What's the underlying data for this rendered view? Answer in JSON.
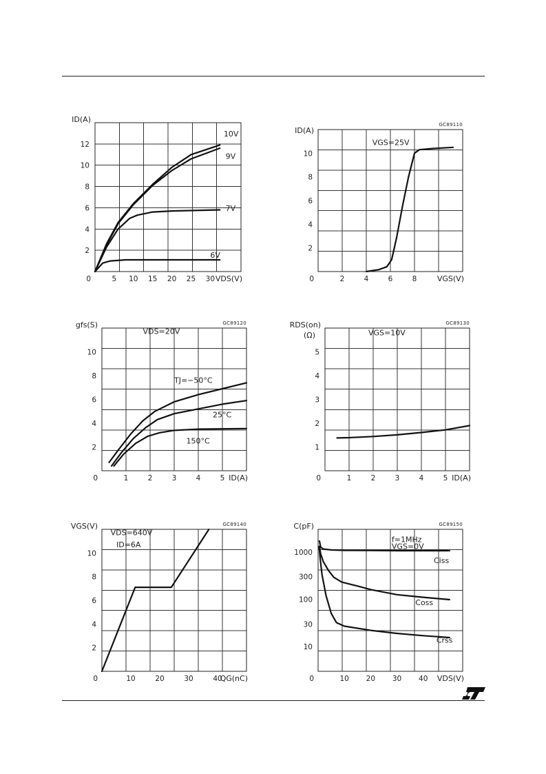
{
  "logo": {
    "icon": "st-logo-icon"
  },
  "chart_data": [
    {
      "id": "output",
      "type": "line",
      "code": "",
      "ylabel": "ID(A)",
      "xlabel": "VDS(V)",
      "xlim": [
        0,
        38
      ],
      "ylim": [
        0,
        14
      ],
      "grid": true,
      "x_ticks": [
        0,
        5,
        10,
        15,
        20,
        25,
        30
      ],
      "x_tick_labels": [
        "0",
        "5",
        "10",
        "15",
        "20",
        "25",
        "30"
      ],
      "y_ticks": [
        2,
        4,
        6,
        8,
        10,
        12
      ],
      "y_tick_labels": [
        "2",
        "4",
        "6",
        "8",
        "10",
        "12"
      ],
      "annotations": [],
      "series": [
        {
          "name": "10V",
          "label_at": [
            33.5,
            12.7
          ],
          "points": [
            [
              0,
              0
            ],
            [
              3,
              2.6
            ],
            [
              6,
              4.6
            ],
            [
              10,
              6.4
            ],
            [
              15,
              8.2
            ],
            [
              20,
              9.8
            ],
            [
              25,
              11.0
            ],
            [
              32.5,
              11.9
            ]
          ]
        },
        {
          "name": "9V",
          "label_at": [
            34.0,
            10.6
          ],
          "points": [
            [
              0,
              0
            ],
            [
              3,
              2.5
            ],
            [
              6,
              4.5
            ],
            [
              10,
              6.3
            ],
            [
              15,
              8.1
            ],
            [
              20,
              9.5
            ],
            [
              25,
              10.6
            ],
            [
              32.5,
              11.6
            ]
          ]
        },
        {
          "name": "7V",
          "label_at": [
            34.0,
            5.7
          ],
          "points": [
            [
              0,
              0
            ],
            [
              3,
              2.3
            ],
            [
              6,
              4.0
            ],
            [
              9,
              5.0
            ],
            [
              11,
              5.3
            ],
            [
              15,
              5.6
            ],
            [
              20,
              5.7
            ],
            [
              32.5,
              5.8
            ]
          ]
        },
        {
          "name": "6V",
          "label_at": [
            30.0,
            1.3
          ],
          "points": [
            [
              0,
              0
            ],
            [
              2,
              0.8
            ],
            [
              4,
              1.0
            ],
            [
              8,
              1.1
            ],
            [
              32.5,
              1.1
            ]
          ]
        }
      ]
    },
    {
      "id": "transfer",
      "type": "line",
      "code": "GC89110",
      "ylabel": "ID(A)",
      "xlabel": "VGS(V)",
      "xlim": [
        0,
        12
      ],
      "ylim": [
        0,
        12
      ],
      "grid": true,
      "x_ticks": [
        0,
        2,
        4,
        6,
        8
      ],
      "x_tick_labels": [
        "0",
        "2",
        "4",
        "6",
        "8"
      ],
      "y_ticks": [
        2,
        4,
        6,
        8,
        10
      ],
      "y_tick_labels": [
        "2",
        "4",
        "6",
        "8",
        "10"
      ],
      "annotations": [
        {
          "text": "VGS=25V",
          "at": [
            4.5,
            10.7
          ]
        }
      ],
      "series": [
        {
          "name": "",
          "points": [
            [
              4.0,
              0
            ],
            [
              5.0,
              0.15
            ],
            [
              5.7,
              0.4
            ],
            [
              6.1,
              1.0
            ],
            [
              6.5,
              2.8
            ],
            [
              7.0,
              5.5
            ],
            [
              7.5,
              8.0
            ],
            [
              8.0,
              10.0
            ],
            [
              8.4,
              10.3
            ],
            [
              9.5,
              10.4
            ],
            [
              11.2,
              10.5
            ]
          ]
        }
      ]
    },
    {
      "id": "transconductance",
      "type": "line",
      "code": "GC89120",
      "ylabel": "gfs(S)",
      "xlabel": "ID(A)",
      "xlim": [
        0,
        6
      ],
      "ylim": [
        0,
        12
      ],
      "grid": true,
      "x_ticks": [
        0,
        1,
        2,
        3,
        4,
        5
      ],
      "x_tick_labels": [
        "0",
        "1",
        "2",
        "3",
        "4",
        "5"
      ],
      "y_ticks": [
        2,
        4,
        6,
        8,
        10
      ],
      "y_tick_labels": [
        "2",
        "4",
        "6",
        "8",
        "10"
      ],
      "annotations": [
        {
          "text": "VDS=20V",
          "at": [
            1.7,
            11.5
          ]
        }
      ],
      "series": [
        {
          "name": "TJ=−50°C",
          "label_at": [
            3.0,
            7.4
          ],
          "points": [
            [
              0.3,
              0.7
            ],
            [
              0.7,
              1.8
            ],
            [
              1.2,
              3.1
            ],
            [
              1.7,
              4.2
            ],
            [
              2.2,
              5.0
            ],
            [
              3.0,
              5.8
            ],
            [
              4.0,
              6.4
            ],
            [
              5.0,
              6.9
            ],
            [
              6.0,
              7.4
            ]
          ]
        },
        {
          "name": "25°C",
          "label_at": [
            4.6,
            4.5
          ],
          "points": [
            [
              0.4,
              0.4
            ],
            [
              0.8,
              1.5
            ],
            [
              1.3,
              2.7
            ],
            [
              1.8,
              3.6
            ],
            [
              2.3,
              4.3
            ],
            [
              3.0,
              4.8
            ],
            [
              4.0,
              5.2
            ],
            [
              5.0,
              5.6
            ],
            [
              6.0,
              5.9
            ]
          ]
        },
        {
          "name": "150°C",
          "label_at": [
            3.5,
            2.3
          ],
          "points": [
            [
              0.5,
              0.4
            ],
            [
              0.9,
              1.4
            ],
            [
              1.4,
              2.3
            ],
            [
              1.9,
              2.9
            ],
            [
              2.4,
              3.2
            ],
            [
              3.0,
              3.4
            ],
            [
              4.0,
              3.5
            ],
            [
              6.0,
              3.55
            ]
          ]
        }
      ]
    },
    {
      "id": "rdson",
      "type": "line",
      "code": "GC89130",
      "ylabel": "RDS(on)",
      "ylabel2": "(Ω)",
      "xlabel": "ID(A)",
      "xlim": [
        0,
        6
      ],
      "ylim": [
        0,
        6
      ],
      "grid": true,
      "x_ticks": [
        0,
        1,
        2,
        3,
        4,
        5
      ],
      "x_tick_labels": [
        "0",
        "1",
        "2",
        "3",
        "4",
        "5"
      ],
      "y_ticks": [
        1,
        2,
        3,
        4,
        5
      ],
      "y_tick_labels": [
        "1",
        "2",
        "3",
        "4",
        "5"
      ],
      "annotations": [
        {
          "text": "VGS=10V",
          "at": [
            1.8,
            5.7
          ]
        }
      ],
      "series": [
        {
          "name": "",
          "points": [
            [
              0.5,
              1.38
            ],
            [
              1,
              1.39
            ],
            [
              2,
              1.44
            ],
            [
              3,
              1.51
            ],
            [
              4,
              1.61
            ],
            [
              5,
              1.72
            ],
            [
              6,
              1.9
            ]
          ]
        }
      ]
    },
    {
      "id": "gate_charge",
      "type": "line",
      "code": "GC89140",
      "ylabel": "VGS(V)",
      "xlabel": "QG(nC)",
      "xlim": [
        0,
        50
      ],
      "ylim": [
        0,
        12
      ],
      "grid": true,
      "x_ticks": [
        0,
        10,
        20,
        30,
        40
      ],
      "x_tick_labels": [
        "0",
        "10",
        "20",
        "30",
        "40"
      ],
      "y_ticks": [
        2,
        4,
        6,
        8,
        10
      ],
      "y_tick_labels": [
        "2",
        "4",
        "6",
        "8",
        "10"
      ],
      "annotations": [
        {
          "text": "VDS=640V",
          "at": [
            3.0,
            11.5
          ]
        },
        {
          "text": "ID=6A",
          "at": [
            5.0,
            10.5
          ]
        }
      ],
      "series": [
        {
          "name": "",
          "points": [
            [
              0,
              0
            ],
            [
              11.5,
              7.1
            ],
            [
              24,
              7.1
            ],
            [
              37,
              12
            ]
          ]
        }
      ]
    },
    {
      "id": "capacitance",
      "type": "line",
      "code": "GC89150",
      "ylabel": "C(pF)",
      "xlabel": "VDS(V)",
      "xlim": [
        0,
        55
      ],
      "ylim_log": [
        3,
        3000
      ],
      "grid": true,
      "x_ticks": [
        0,
        10,
        20,
        30,
        40
      ],
      "x_tick_labels": [
        "0",
        "10",
        "20",
        "30",
        "40"
      ],
      "y_ticks": [
        10,
        30,
        100,
        300,
        1000
      ],
      "y_tick_labels": [
        "10",
        "30",
        "100",
        "300",
        "1000"
      ],
      "annotations": [
        {
          "text": "f=1MHz",
          "at": [
            28,
            1600
          ]
        },
        {
          "text": "VGS=0V",
          "at": [
            28,
            1150
          ]
        }
      ],
      "series": [
        {
          "name": "Ciss",
          "label_at": [
            44,
            580
          ],
          "points": [
            [
              0.5,
              1700
            ],
            [
              1,
              1250
            ],
            [
              2,
              1150
            ],
            [
              5,
              1100
            ],
            [
              10,
              1080
            ],
            [
              20,
              1070
            ],
            [
              30,
              1060
            ],
            [
              50,
              1060
            ]
          ]
        },
        {
          "name": "Coss",
          "label_at": [
            37,
            75
          ],
          "points": [
            [
              0.5,
              1300
            ],
            [
              1,
              900
            ],
            [
              2,
              620
            ],
            [
              4,
              400
            ],
            [
              6,
              290
            ],
            [
              9,
              230
            ],
            [
              15,
              190
            ],
            [
              20,
              160
            ],
            [
              30,
              125
            ],
            [
              40,
              110
            ],
            [
              50,
              98
            ]
          ]
        },
        {
          "name": "Crss",
          "label_at": [
            45,
            12
          ],
          "points": [
            [
              0.4,
              1300
            ],
            [
              0.8,
              700
            ],
            [
              1.5,
              330
            ],
            [
              3,
              120
            ],
            [
              5,
              50
            ],
            [
              7,
              32
            ],
            [
              10,
              27
            ],
            [
              20,
              22
            ],
            [
              30,
              19
            ],
            [
              40,
              17
            ],
            [
              50,
              15.5
            ]
          ]
        }
      ]
    }
  ]
}
